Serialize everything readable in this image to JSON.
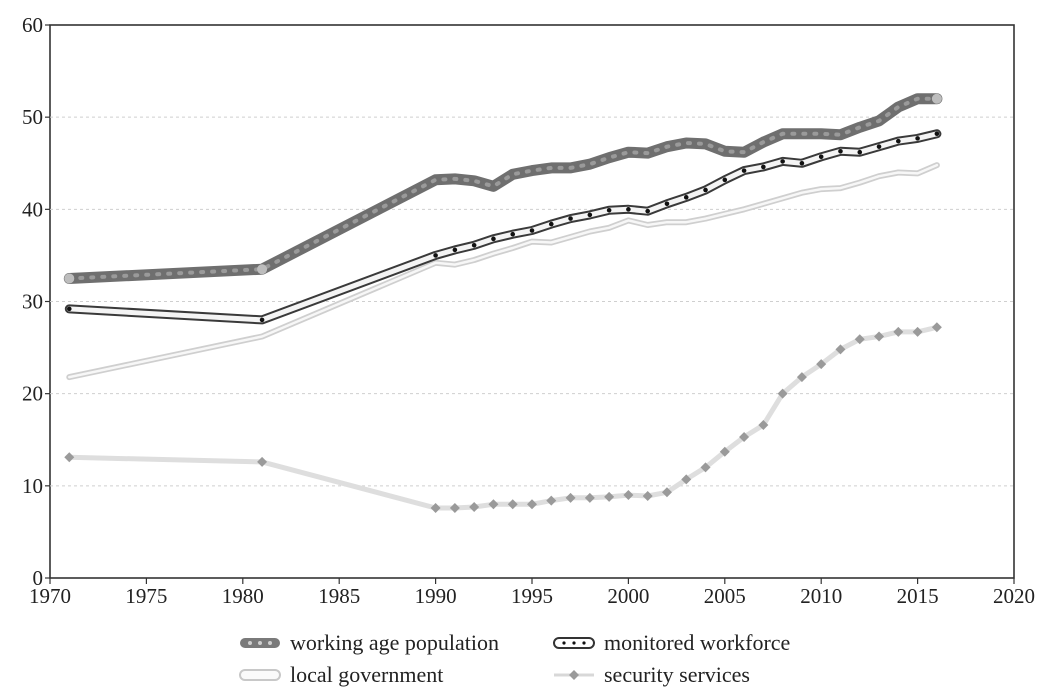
{
  "chart_data": {
    "type": "line",
    "title": "",
    "xlabel": "",
    "ylabel": "",
    "xlim": [
      1970,
      2020
    ],
    "ylim": [
      0,
      60
    ],
    "x_ticks": [
      1970,
      1975,
      1980,
      1985,
      1990,
      1995,
      2000,
      2005,
      2010,
      2015,
      2020
    ],
    "y_ticks": [
      0,
      10,
      20,
      30,
      40,
      50,
      60
    ],
    "grid": "horizontal dashed",
    "legend_position": "bottom",
    "series": [
      {
        "name": "working age population",
        "style": "thick-dark-gray",
        "color": "#777777",
        "x": [
          1971,
          1981,
          1990,
          1991,
          1992,
          1993,
          1994,
          1995,
          1996,
          1997,
          1998,
          1999,
          2000,
          2001,
          2002,
          2003,
          2004,
          2005,
          2006,
          2007,
          2008,
          2009,
          2010,
          2011,
          2012,
          2013,
          2014,
          2015,
          2016
        ],
        "values": [
          32.5,
          33.5,
          43.2,
          43.3,
          43.1,
          42.5,
          43.8,
          44.2,
          44.5,
          44.5,
          44.9,
          45.6,
          46.2,
          46.1,
          46.8,
          47.2,
          47.1,
          46.3,
          46.2,
          47.3,
          48.2,
          48.2,
          48.2,
          48.1,
          48.9,
          49.6,
          51.1,
          52.0,
          52.0
        ]
      },
      {
        "name": "monitored workforce",
        "style": "outlined-dotted",
        "color": "#333333",
        "x": [
          1971,
          1981,
          1990,
          1991,
          1992,
          1993,
          1994,
          1995,
          1996,
          1997,
          1998,
          1999,
          2000,
          2001,
          2002,
          2003,
          2004,
          2005,
          2006,
          2007,
          2008,
          2009,
          2010,
          2011,
          2012,
          2013,
          2014,
          2015,
          2016
        ],
        "values": [
          29.2,
          28.0,
          35.0,
          35.6,
          36.1,
          36.8,
          37.3,
          37.7,
          38.4,
          39.0,
          39.4,
          39.9,
          40.0,
          39.8,
          40.6,
          41.3,
          42.1,
          43.2,
          44.2,
          44.6,
          45.2,
          45.0,
          45.7,
          46.3,
          46.2,
          46.8,
          47.4,
          47.7,
          48.2
        ]
      },
      {
        "name": "local government",
        "style": "thin-light-gray",
        "color": "#cfcfcf",
        "x": [
          1971,
          1981,
          1990,
          1991,
          1992,
          1993,
          1994,
          1995,
          1996,
          1997,
          1998,
          1999,
          2000,
          2001,
          2002,
          2003,
          2004,
          2005,
          2006,
          2007,
          2008,
          2009,
          2010,
          2011,
          2012,
          2013,
          2014,
          2015,
          2016
        ],
        "values": [
          21.8,
          26.2,
          34.2,
          34.0,
          34.5,
          35.2,
          35.8,
          36.5,
          36.4,
          37.0,
          37.6,
          38.0,
          38.8,
          38.3,
          38.6,
          38.6,
          39.0,
          39.5,
          40.0,
          40.6,
          41.2,
          41.8,
          42.2,
          42.3,
          42.9,
          43.6,
          44.0,
          43.9,
          44.8
        ]
      },
      {
        "name": "security services",
        "style": "dotted-diamond",
        "color": "#9a9a9a",
        "x": [
          1971,
          1981,
          1990,
          1991,
          1992,
          1993,
          1994,
          1995,
          1996,
          1997,
          1998,
          1999,
          2000,
          2001,
          2002,
          2003,
          2004,
          2005,
          2006,
          2007,
          2008,
          2009,
          2010,
          2011,
          2012,
          2013,
          2014,
          2015,
          2016
        ],
        "values": [
          13.1,
          12.6,
          7.6,
          7.6,
          7.7,
          8.0,
          8.0,
          8.0,
          8.4,
          8.7,
          8.7,
          8.8,
          9.0,
          8.9,
          9.3,
          10.7,
          12.0,
          13.7,
          15.3,
          16.6,
          20.0,
          21.8,
          23.2,
          24.8,
          25.9,
          26.2,
          26.7,
          26.7,
          27.2
        ]
      }
    ]
  }
}
